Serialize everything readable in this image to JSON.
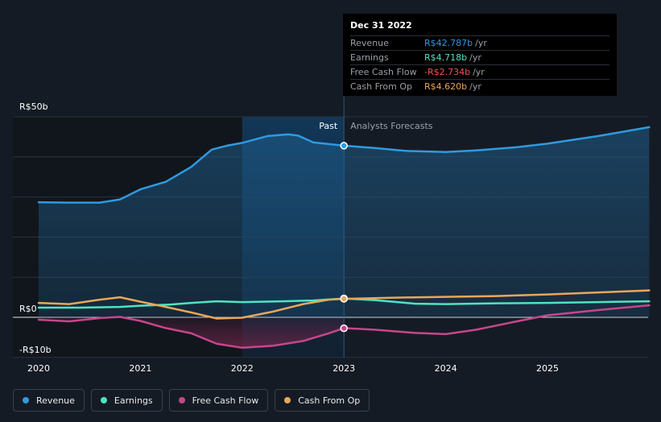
{
  "chart_data": {
    "type": "line",
    "y_unit_prefix": "R$",
    "ylim": [
      -10,
      50
    ],
    "y_ticks": [
      {
        "value": 50,
        "label": "R$50b"
      },
      {
        "value": 0,
        "label": "R$0"
      },
      {
        "value": -10,
        "label": "-R$10b"
      }
    ],
    "x_range": [
      2020,
      2026
    ],
    "x_ticks": [
      {
        "value": 2020,
        "label": "2020"
      },
      {
        "value": 2021,
        "label": "2021"
      },
      {
        "value": 2022,
        "label": "2022"
      },
      {
        "value": 2023,
        "label": "2023"
      },
      {
        "value": 2024,
        "label": "2024"
      },
      {
        "value": 2025,
        "label": "2025"
      }
    ],
    "divider_x": 2023,
    "highlight_start_x": 2022,
    "past_label": "Past",
    "forecast_label": "Analysts Forecasts",
    "series": [
      {
        "name": "Revenue",
        "color": "#2f9ae0",
        "fill": true,
        "points": [
          [
            2020,
            28.7
          ],
          [
            2020.3,
            28.6
          ],
          [
            2020.6,
            28.6
          ],
          [
            2020.8,
            29.4
          ],
          [
            2021,
            31.9
          ],
          [
            2021.25,
            33.8
          ],
          [
            2021.5,
            37.5
          ],
          [
            2021.7,
            41.8
          ],
          [
            2021.85,
            42.8
          ],
          [
            2022,
            43.5
          ],
          [
            2022.25,
            45.2
          ],
          [
            2022.45,
            45.6
          ],
          [
            2022.55,
            45.3
          ],
          [
            2022.7,
            43.6
          ],
          [
            2022.85,
            43.2
          ],
          [
            2023,
            42.8
          ],
          [
            2023.3,
            42.2
          ],
          [
            2023.6,
            41.5
          ],
          [
            2024,
            41.2
          ],
          [
            2024.3,
            41.6
          ],
          [
            2024.7,
            42.4
          ],
          [
            2025,
            43.3
          ],
          [
            2025.5,
            45.2
          ],
          [
            2026,
            47.4
          ]
        ]
      },
      {
        "name": "Earnings",
        "color": "#4fe3c1",
        "fill": false,
        "points": [
          [
            2020,
            2.4
          ],
          [
            2020.4,
            2.4
          ],
          [
            2020.8,
            2.6
          ],
          [
            2021,
            2.9
          ],
          [
            2021.3,
            3.2
          ],
          [
            2021.5,
            3.6
          ],
          [
            2021.75,
            4.0
          ],
          [
            2022,
            3.8
          ],
          [
            2022.4,
            4.0
          ],
          [
            2022.7,
            4.2
          ],
          [
            2023,
            4.7
          ],
          [
            2023.3,
            4.3
          ],
          [
            2023.7,
            3.4
          ],
          [
            2024,
            3.3
          ],
          [
            2024.5,
            3.5
          ],
          [
            2025,
            3.6
          ],
          [
            2025.5,
            3.8
          ],
          [
            2026,
            4.0
          ]
        ]
      },
      {
        "name": "Free Cash Flow",
        "color": "#c6468b",
        "fill": false,
        "points": [
          [
            2020,
            -0.6
          ],
          [
            2020.3,
            -1.0
          ],
          [
            2020.6,
            -0.2
          ],
          [
            2020.8,
            0.1
          ],
          [
            2021,
            -0.9
          ],
          [
            2021.25,
            -2.7
          ],
          [
            2021.5,
            -4.0
          ],
          [
            2021.75,
            -6.6
          ],
          [
            2022,
            -7.6
          ],
          [
            2022.3,
            -7.1
          ],
          [
            2022.6,
            -5.9
          ],
          [
            2022.85,
            -4.0
          ],
          [
            2023,
            -2.7
          ],
          [
            2023.3,
            -3.1
          ],
          [
            2023.7,
            -3.9
          ],
          [
            2024,
            -4.2
          ],
          [
            2024.3,
            -3.1
          ],
          [
            2024.7,
            -1.0
          ],
          [
            2025,
            0.5
          ],
          [
            2025.5,
            1.8
          ],
          [
            2026,
            3.0
          ]
        ]
      },
      {
        "name": "Cash From Op",
        "color": "#e8a75a",
        "fill": false,
        "points": [
          [
            2020,
            3.6
          ],
          [
            2020.3,
            3.3
          ],
          [
            2020.6,
            4.4
          ],
          [
            2020.8,
            5.0
          ],
          [
            2021,
            3.9
          ],
          [
            2021.25,
            2.6
          ],
          [
            2021.5,
            1.2
          ],
          [
            2021.75,
            -0.3
          ],
          [
            2022,
            -0.1
          ],
          [
            2022.3,
            1.4
          ],
          [
            2022.6,
            3.3
          ],
          [
            2022.85,
            4.4
          ],
          [
            2023,
            4.6
          ],
          [
            2023.5,
            4.9
          ],
          [
            2024,
            5.1
          ],
          [
            2024.5,
            5.3
          ],
          [
            2025,
            5.7
          ],
          [
            2025.5,
            6.2
          ],
          [
            2026,
            6.7
          ]
        ]
      }
    ],
    "highlight_points": [
      {
        "series": "Revenue",
        "x": 2023,
        "y": 42.787
      },
      {
        "series": "Earnings",
        "x": 2023,
        "y": 4.718
      },
      {
        "series": "Free Cash Flow",
        "x": 2023,
        "y": -2.734
      },
      {
        "series": "Cash From Op",
        "x": 2023,
        "y": 4.62
      }
    ]
  },
  "tooltip": {
    "date": "Dec 31 2022",
    "rows": [
      {
        "label": "Revenue",
        "value": "R$42.787b",
        "unit": "/yr",
        "color": "#2f9ae0"
      },
      {
        "label": "Earnings",
        "value": "R$4.718b",
        "unit": "/yr",
        "color": "#4fe3c1"
      },
      {
        "label": "Free Cash Flow",
        "value": "-R$2.734b",
        "unit": "/yr",
        "color": "#f05252"
      },
      {
        "label": "Cash From Op",
        "value": "R$4.620b",
        "unit": "/yr",
        "color": "#e8a75a"
      }
    ]
  },
  "legend": [
    {
      "label": "Revenue",
      "color": "#2f9ae0"
    },
    {
      "label": "Earnings",
      "color": "#4fe3c1"
    },
    {
      "label": "Free Cash Flow",
      "color": "#c6468b"
    },
    {
      "label": "Cash From Op",
      "color": "#e8a75a"
    }
  ]
}
